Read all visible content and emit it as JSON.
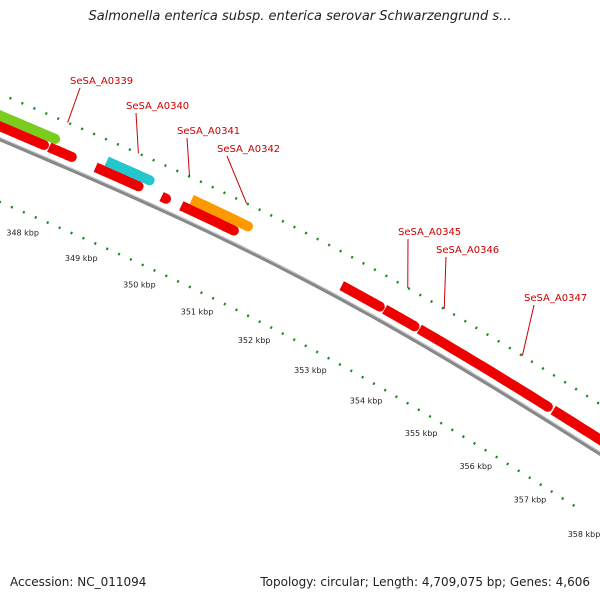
{
  "title": "Salmonella enterica subsp. enterica serovar Schwarzengrund s...",
  "footer": {
    "accession": "Accession: NC_011094",
    "summary": "Topology: circular; Length: 4,709,075 bp; Genes: 4,606"
  },
  "colors": {
    "gene": "#ee0000",
    "gene_highlight_cyan": "#22c8cc",
    "gene_highlight_orange": "#ff9900",
    "feature_green": "#7acc1f",
    "backbone": "#888888",
    "dotted_track": "#1a8a1a",
    "label": "#cc0000"
  },
  "gene_labels": [
    {
      "name": "SeSA_A0339"
    },
    {
      "name": "SeSA_A0340"
    },
    {
      "name": "SeSA_A0341"
    },
    {
      "name": "SeSA_A0342"
    },
    {
      "name": "SeSA_A0345"
    },
    {
      "name": "SeSA_A0346"
    },
    {
      "name": "SeSA_A0347"
    }
  ],
  "scale_ticks": [
    "348 kbp",
    "349 kbp",
    "350 kbp",
    "351 kbp",
    "352 kbp",
    "353 kbp",
    "354 kbp",
    "355 kbp",
    "356 kbp",
    "357 kbp",
    "358 kbp"
  ]
}
